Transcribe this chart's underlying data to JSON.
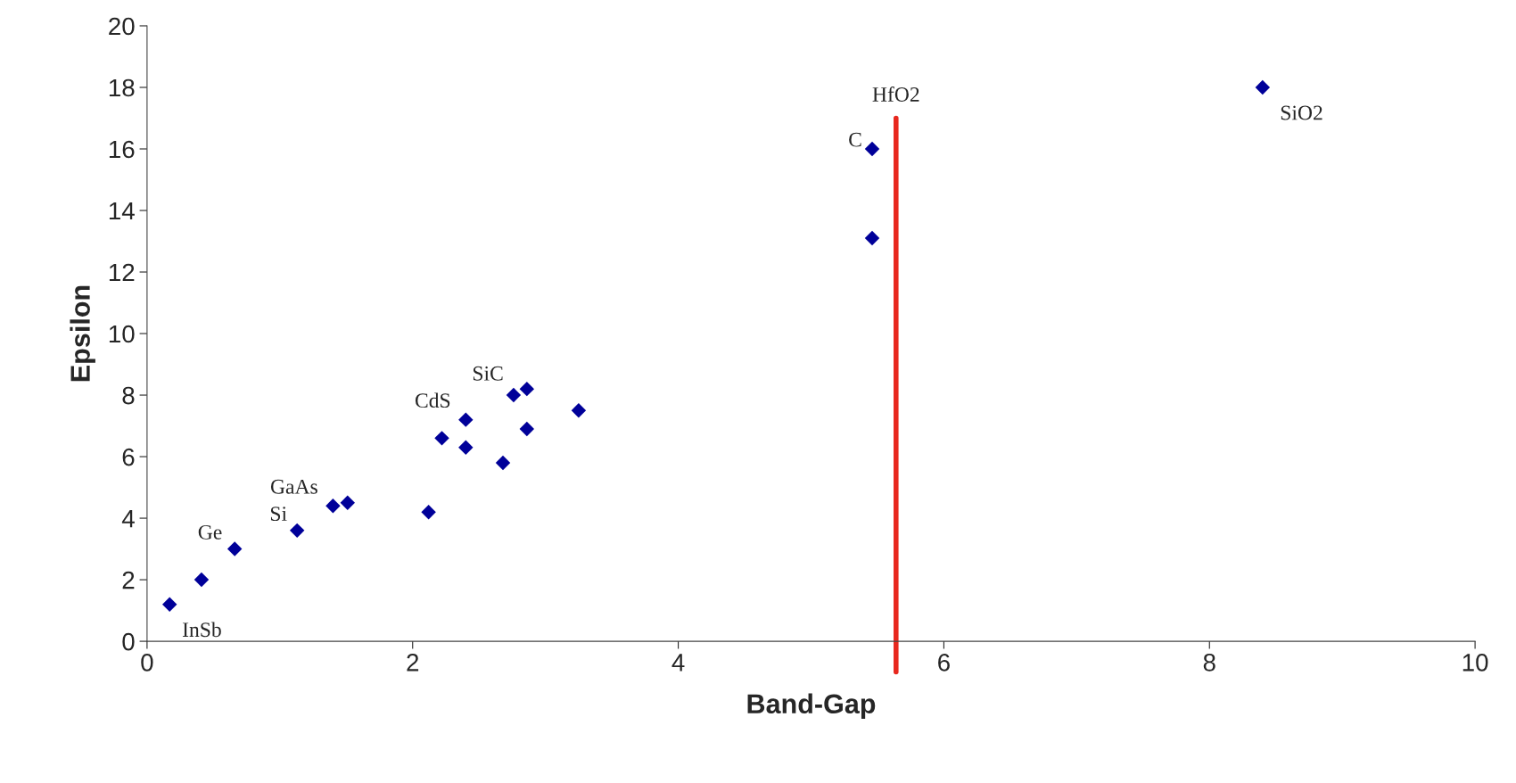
{
  "chart_data": {
    "type": "scatter",
    "xlabel": "Band-Gap",
    "ylabel": "Epsilon",
    "x": [
      0.17,
      0.41,
      0.66,
      1.13,
      1.4,
      1.51,
      2.12,
      2.22,
      2.4,
      2.4,
      2.68,
      2.76,
      2.86,
      2.86,
      3.25,
      5.46,
      5.46,
      8.4
    ],
    "values": [
      1.2,
      2.0,
      3.0,
      3.6,
      4.4,
      4.5,
      4.2,
      6.6,
      7.2,
      6.3,
      5.8,
      8.0,
      8.2,
      6.9,
      7.5,
      16.0,
      13.1,
      18.0
    ],
    "color": "#000099",
    "marker": "diamond",
    "xlim": [
      0,
      10
    ],
    "xticks": [
      0,
      2,
      4,
      6,
      8,
      10
    ],
    "ylim": [
      0,
      20
    ],
    "yticks": [
      0,
      2,
      4,
      6,
      8,
      10,
      12,
      14,
      16,
      18,
      20
    ],
    "grid": false,
    "legend": false,
    "ref_lines": [
      {
        "axis": "x",
        "value": 5.64,
        "label": "HfO2",
        "color": "#e8281e"
      }
    ],
    "annotations": [
      {
        "text": "InSb",
        "x": 0.17,
        "y": 1.2
      },
      {
        "text": "Ge",
        "x": 0.66,
        "y": 3.0
      },
      {
        "text": "Si",
        "x": 1.13,
        "y": 3.6
      },
      {
        "text": "GaAs",
        "x": 1.4,
        "y": 4.4
      },
      {
        "text": "CdS",
        "x": 2.4,
        "y": 7.2
      },
      {
        "text": "SiC",
        "x": 2.76,
        "y": 8.0
      },
      {
        "text": "C",
        "x": 5.46,
        "y": 16.0
      },
      {
        "text": "SiO2",
        "x": 8.4,
        "y": 18.0
      }
    ]
  }
}
